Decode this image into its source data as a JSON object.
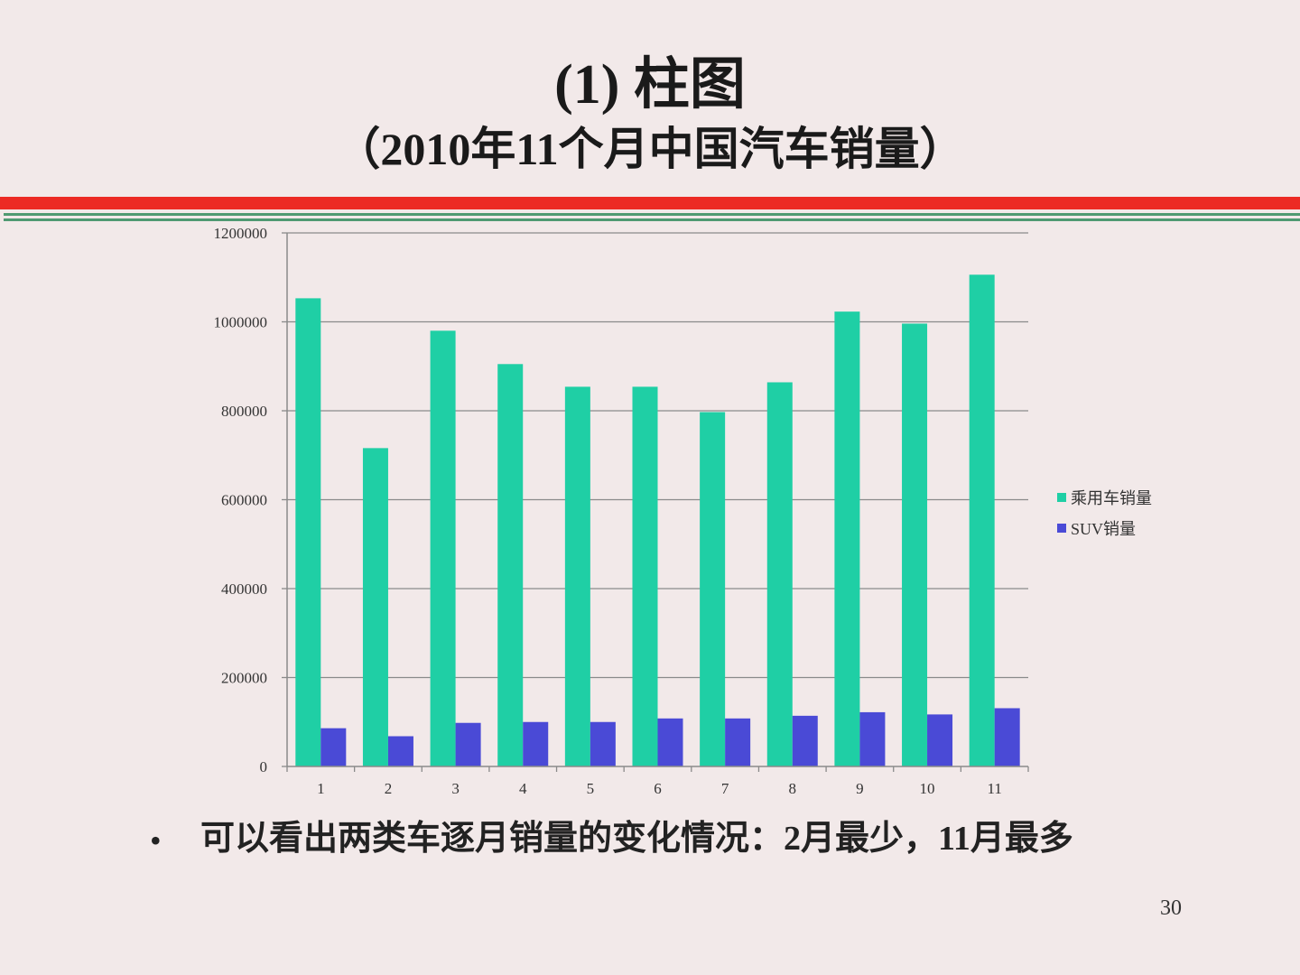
{
  "slide": {
    "title": "(1) 柱图",
    "subtitle": "（2010年11个月中国汽车销量）",
    "bullet": "可以看出两类车逐月销量的变化情况：2月最少，11月最多",
    "page_number": "30",
    "colors": {
      "background": "#f2e9e9",
      "red_rule": "#ec2a24",
      "green_rule": "#4f9a72"
    }
  },
  "chart_data": {
    "type": "bar",
    "title": "",
    "xlabel": "",
    "ylabel": "",
    "categories": [
      "1",
      "2",
      "3",
      "4",
      "5",
      "6",
      "7",
      "8",
      "9",
      "10",
      "11"
    ],
    "ylim": [
      0,
      1200000
    ],
    "yticks": [
      0,
      200000,
      400000,
      600000,
      800000,
      1000000,
      1200000
    ],
    "ytick_labels": [
      "0",
      "200000",
      "400000",
      "600000",
      "800000",
      "1000000",
      "1200000"
    ],
    "grid": true,
    "legend_position": "right",
    "series": [
      {
        "name": "乘用车销量",
        "color": "#1fcfa5",
        "values": [
          1053000,
          716000,
          980000,
          905000,
          854000,
          854000,
          797000,
          864000,
          1023000,
          996000,
          1106000
        ]
      },
      {
        "name": "SUV销量",
        "color": "#4a4ad6",
        "values": [
          86000,
          68000,
          98000,
          100000,
          100000,
          108000,
          108000,
          114000,
          122000,
          117000,
          131000
        ]
      }
    ]
  }
}
